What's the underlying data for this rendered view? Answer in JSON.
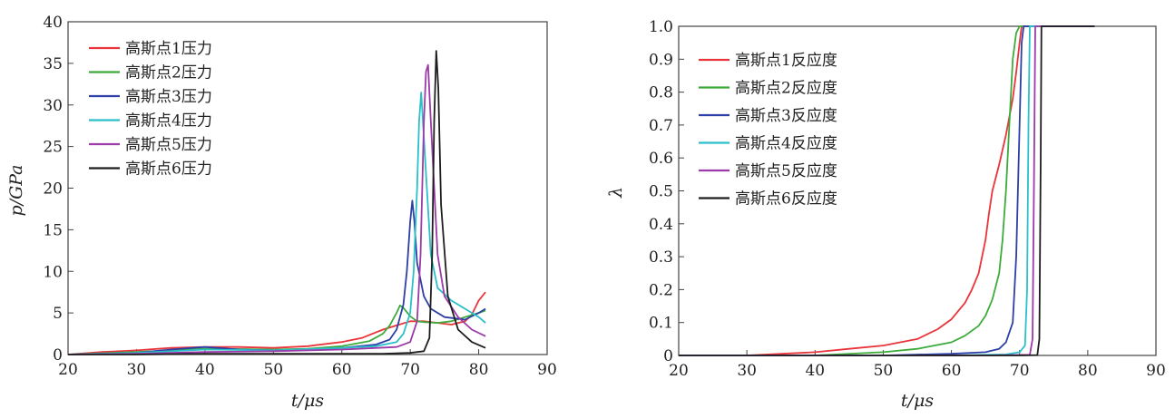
{
  "chart_data": [
    {
      "type": "line",
      "xlabel": "t/μs",
      "ylabel": "p/GPa",
      "xlim": [
        20,
        90
      ],
      "ylim": [
        0,
        40
      ],
      "xticks": [
        "20",
        "30",
        "40",
        "50",
        "60",
        "70",
        "80",
        "90"
      ],
      "yticks": [
        "0",
        "5",
        "10",
        "15",
        "20",
        "25",
        "30",
        "35",
        "40"
      ],
      "legend_position": "top-left",
      "series": [
        {
          "name": "高斯点1压力",
          "color": "#e8343a",
          "x": [
            20,
            25,
            30,
            35,
            40,
            45,
            50,
            55,
            60,
            63,
            66,
            68,
            70,
            72,
            74,
            76,
            78,
            79,
            80,
            81
          ],
          "y": [
            0,
            0.3,
            0.5,
            0.8,
            0.9,
            0.9,
            0.8,
            1.0,
            1.5,
            2.0,
            3.0,
            3.5,
            4.0,
            4.0,
            3.8,
            3.6,
            4.0,
            4.8,
            6.5,
            7.5
          ]
        },
        {
          "name": "高斯点2压力",
          "color": "#3cab3a",
          "x": [
            20,
            30,
            40,
            50,
            55,
            60,
            64,
            66,
            67,
            68,
            68.5,
            69,
            70,
            71,
            72,
            74,
            76,
            78,
            80,
            81
          ],
          "y": [
            0,
            0.3,
            0.7,
            0.6,
            0.7,
            1.0,
            1.6,
            2.5,
            3.5,
            5.0,
            5.9,
            5.6,
            4.6,
            4.0,
            3.9,
            3.8,
            4.0,
            4.5,
            5.0,
            5.3
          ]
        },
        {
          "name": "高斯点3压力",
          "color": "#2d3fa6",
          "x": [
            20,
            30,
            35,
            40,
            45,
            50,
            55,
            60,
            65,
            67,
            68,
            69,
            69.5,
            70,
            70.3,
            70.6,
            71,
            72,
            73,
            75,
            78,
            80,
            81
          ],
          "y": [
            0,
            0.2,
            0.6,
            0.9,
            0.6,
            0.5,
            0.6,
            0.8,
            1.2,
            1.8,
            3.0,
            6.0,
            10.0,
            16.0,
            18.5,
            16.0,
            11.0,
            7.0,
            5.5,
            4.5,
            4.2,
            5.0,
            5.5
          ]
        },
        {
          "name": "高斯点4压力",
          "color": "#2bbfca",
          "x": [
            20,
            30,
            40,
            50,
            60,
            65,
            68,
            69,
            70,
            70.5,
            71,
            71.3,
            71.6,
            72,
            73,
            74,
            76,
            78,
            80,
            81
          ],
          "y": [
            0,
            0.2,
            0.6,
            0.5,
            0.8,
            1.0,
            1.5,
            2.5,
            5.0,
            10.0,
            20.0,
            28.0,
            31.5,
            26.0,
            12.0,
            8.0,
            6.5,
            5.5,
            4.5,
            3.8
          ]
        },
        {
          "name": "高斯点5压力",
          "color": "#9b3aa8",
          "x": [
            20,
            30,
            40,
            50,
            60,
            68,
            70,
            71,
            71.5,
            72,
            72.3,
            72.6,
            73,
            74,
            75,
            77,
            79,
            81
          ],
          "y": [
            0,
            0.1,
            0.3,
            0.4,
            0.6,
            0.9,
            1.5,
            4.0,
            12.0,
            28.0,
            34.0,
            34.8,
            28.0,
            12.0,
            7.0,
            4.5,
            3.0,
            2.2
          ]
        },
        {
          "name": "高斯点6压力",
          "color": "#1e1e1e",
          "x": [
            20,
            30,
            40,
            50,
            60,
            66,
            70,
            72,
            72.8,
            73.2,
            73.5,
            73.8,
            74.1,
            74.5,
            75.5,
            77,
            79,
            81
          ],
          "y": [
            0,
            0,
            0.1,
            0.1,
            0.1,
            0.1,
            0.2,
            0.4,
            2.0,
            12.0,
            28.0,
            36.5,
            32.0,
            18.0,
            7.0,
            3.0,
            1.5,
            0.8
          ]
        }
      ]
    },
    {
      "type": "line",
      "xlabel": "t/μs",
      "ylabel": "λ",
      "xlim": [
        20,
        90
      ],
      "ylim": [
        0,
        1.0
      ],
      "xticks": [
        "20",
        "30",
        "40",
        "50",
        "60",
        "70",
        "80",
        "90"
      ],
      "yticks": [
        "0",
        "0.1",
        "0.2",
        "0.3",
        "0.4",
        "0.5",
        "0.6",
        "0.7",
        "0.8",
        "0.9",
        "1.0"
      ],
      "legend_position": "top-left",
      "series": [
        {
          "name": "高斯点1反应度",
          "color": "#e8343a",
          "x": [
            20,
            30,
            40,
            45,
            50,
            55,
            58,
            60,
            62,
            63,
            64,
            65,
            65.5,
            66,
            67,
            68,
            69,
            69.5,
            70,
            70.3,
            81
          ],
          "y": [
            0,
            0,
            0.01,
            0.02,
            0.03,
            0.05,
            0.08,
            0.11,
            0.16,
            0.2,
            0.25,
            0.35,
            0.43,
            0.5,
            0.58,
            0.67,
            0.78,
            0.86,
            0.95,
            1.0,
            1.0
          ]
        },
        {
          "name": "高斯点2反应度",
          "color": "#3cab3a",
          "x": [
            20,
            40,
            50,
            55,
            60,
            62,
            64,
            65,
            66,
            67,
            67.5,
            68,
            68.5,
            69,
            69.5,
            70,
            81
          ],
          "y": [
            0,
            0,
            0.01,
            0.02,
            0.04,
            0.06,
            0.09,
            0.12,
            0.17,
            0.25,
            0.35,
            0.5,
            0.7,
            0.9,
            0.98,
            1.0,
            1.0
          ]
        },
        {
          "name": "高斯点3反应度",
          "color": "#2d3fa6",
          "x": [
            20,
            50,
            60,
            65,
            67,
            68,
            69,
            69.5,
            70,
            70.3,
            70.6,
            81
          ],
          "y": [
            0,
            0,
            0.005,
            0.01,
            0.02,
            0.04,
            0.1,
            0.3,
            0.7,
            0.95,
            1.0,
            1.0
          ]
        },
        {
          "name": "高斯点4反应度",
          "color": "#2bbfca",
          "x": [
            20,
            60,
            68,
            70,
            70.8,
            71.1,
            71.3,
            71.5,
            81
          ],
          "y": [
            0,
            0,
            0.003,
            0.01,
            0.03,
            0.2,
            0.7,
            1.0,
            1.0
          ]
        },
        {
          "name": "高斯点5反应度",
          "color": "#9b3aa8",
          "x": [
            20,
            65,
            71.5,
            71.9,
            72.1,
            72.3,
            81
          ],
          "y": [
            0,
            0,
            0.002,
            0.05,
            0.5,
            1.0,
            1.0
          ]
        },
        {
          "name": "高斯点6反应度",
          "color": "#1e1e1e",
          "x": [
            20,
            70,
            72.6,
            72.9,
            73.1,
            73.2,
            81
          ],
          "y": [
            0,
            0,
            0.001,
            0.05,
            0.6,
            1.0,
            1.0
          ]
        }
      ]
    }
  ]
}
